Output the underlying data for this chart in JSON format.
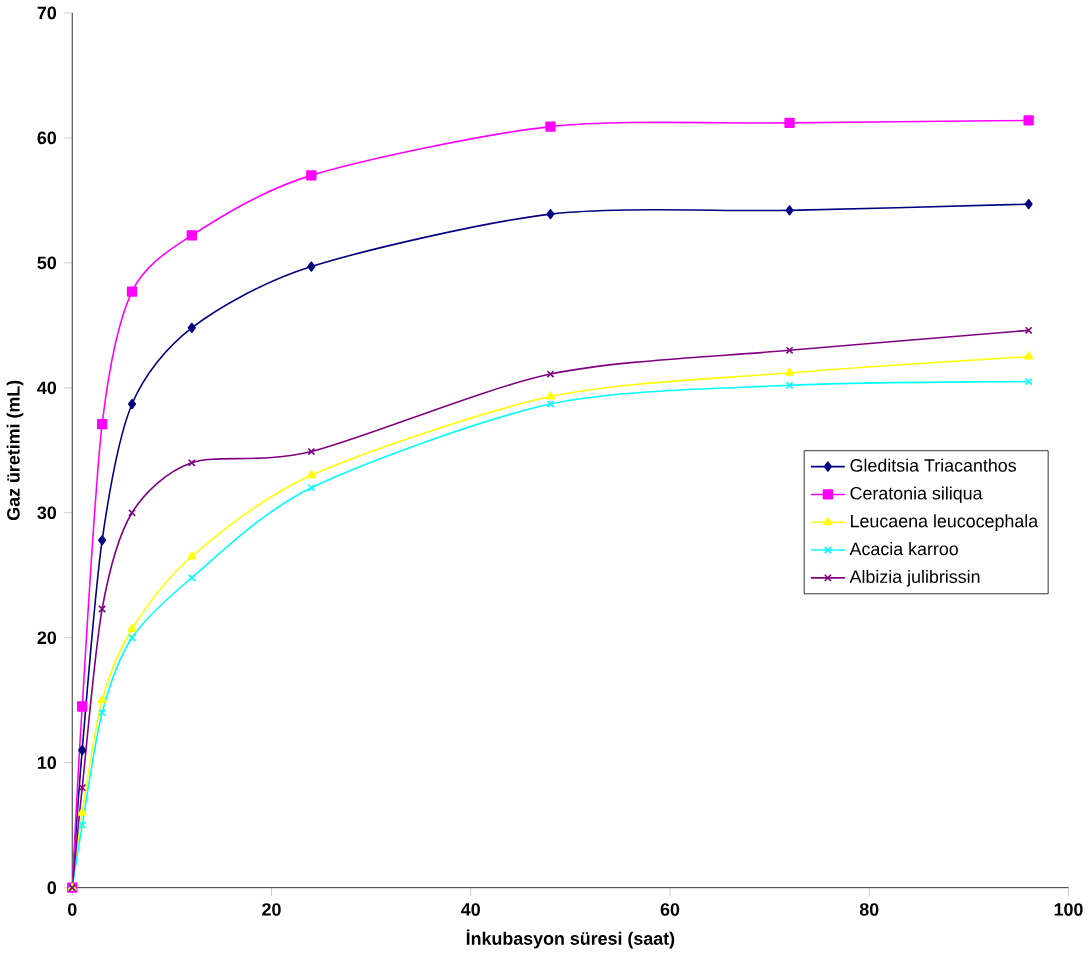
{
  "chart_data": {
    "type": "line",
    "xlabel": "İnkubasyon süresi (saat)",
    "ylabel": "Gaz üretimi (mL)",
    "x": [
      0,
      1,
      3,
      6,
      12,
      24,
      48,
      72,
      96
    ],
    "series": [
      {
        "name": "Gleditsia Triacanthos",
        "color": "#000080",
        "marker": "diamond",
        "values": [
          0,
          11,
          27.8,
          38.7,
          44.8,
          49.7,
          53.9,
          54.2,
          54.7
        ]
      },
      {
        "name": "Ceratonia siliqua",
        "color": "#ff00ff",
        "marker": "square",
        "values": [
          0,
          14.5,
          37.1,
          47.7,
          52.2,
          57,
          60.9,
          61.2,
          61.4
        ]
      },
      {
        "name": "Leucaena leucocephala",
        "color": "#ffff00",
        "marker": "triangle",
        "values": [
          0,
          6,
          15,
          20.7,
          26.5,
          33,
          39.3,
          41.2,
          42.5
        ]
      },
      {
        "name": "Acacia karroo",
        "color": "#00ffff",
        "marker": "cross",
        "values": [
          0,
          5,
          14,
          20,
          24.8,
          32,
          38.7,
          40.2,
          40.5
        ]
      },
      {
        "name": "Albizia julibrissin",
        "color": "#800080",
        "marker": "cross",
        "values": [
          0,
          8,
          22.3,
          30,
          34,
          34.9,
          41.1,
          43,
          44.6
        ]
      }
    ],
    "xlim": [
      0,
      100
    ],
    "ylim": [
      0,
      70
    ],
    "xticks": [
      0,
      20,
      40,
      60,
      80,
      100
    ],
    "yticks": [
      0,
      10,
      20,
      30,
      40,
      50,
      60,
      70
    ],
    "grid": false,
    "legend": "right"
  }
}
